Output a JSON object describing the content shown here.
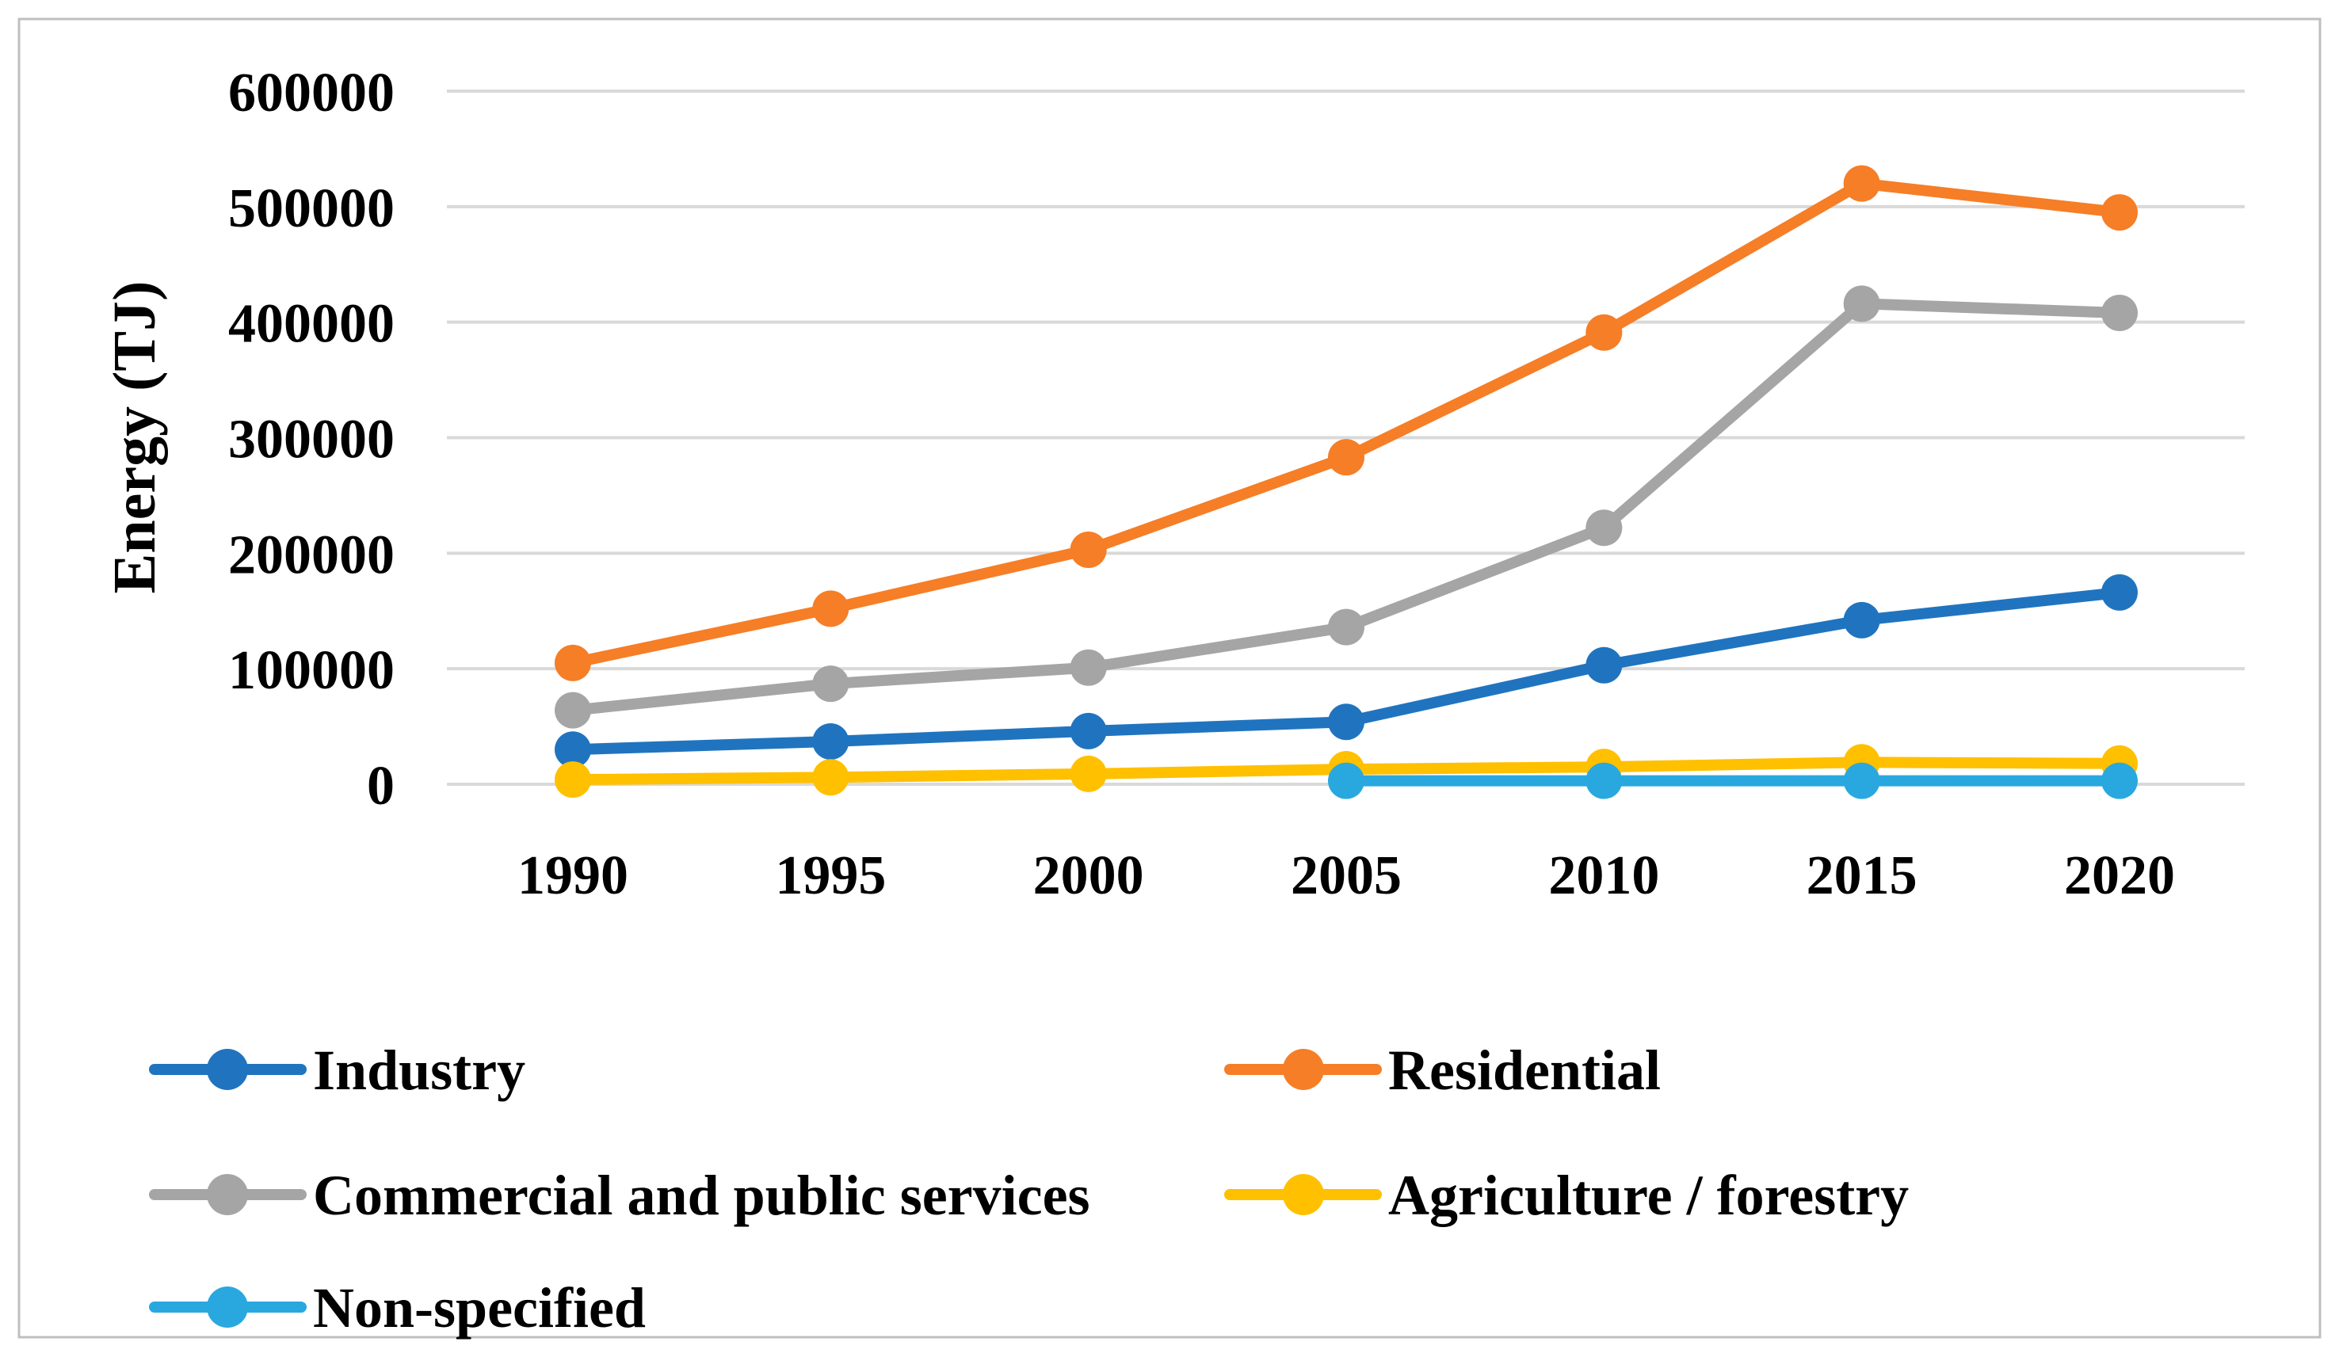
{
  "figure": {
    "background": "#FFFFFF",
    "border_color": "#BFBFBF"
  },
  "chart_data": {
    "type": "line",
    "title": "",
    "xlabel": "",
    "ylabel": "Energy (TJ)",
    "x": [
      1990,
      1995,
      2000,
      2005,
      2010,
      2015,
      2020
    ],
    "y_ticks": [
      0,
      100000,
      200000,
      300000,
      400000,
      500000,
      600000
    ],
    "ylim": [
      0,
      600000
    ],
    "grid": "horizontal",
    "gridline_color": "#D9D9D9",
    "legend_position": "bottom-left-two-columns",
    "series": [
      {
        "name": "Industry",
        "color": "#2074BF",
        "values": [
          30000,
          37000,
          46000,
          54000,
          103000,
          142000,
          166000
        ]
      },
      {
        "name": "Residential",
        "color": "#F57E27",
        "values": [
          105000,
          152000,
          203000,
          283000,
          391000,
          520000,
          495000
        ]
      },
      {
        "name": "Commercial and public services",
        "color": "#A5A5A5",
        "values": [
          64000,
          87000,
          101000,
          136000,
          222000,
          416000,
          408000
        ]
      },
      {
        "name": "Agriculture / forestry",
        "color": "#FFC000",
        "values": [
          4000,
          6000,
          9000,
          13000,
          15000,
          19000,
          18000
        ]
      },
      {
        "name": "Non-specified",
        "color": "#29A8DF",
        "values": [
          null,
          null,
          null,
          3000,
          3000,
          3000,
          3000
        ]
      }
    ]
  }
}
